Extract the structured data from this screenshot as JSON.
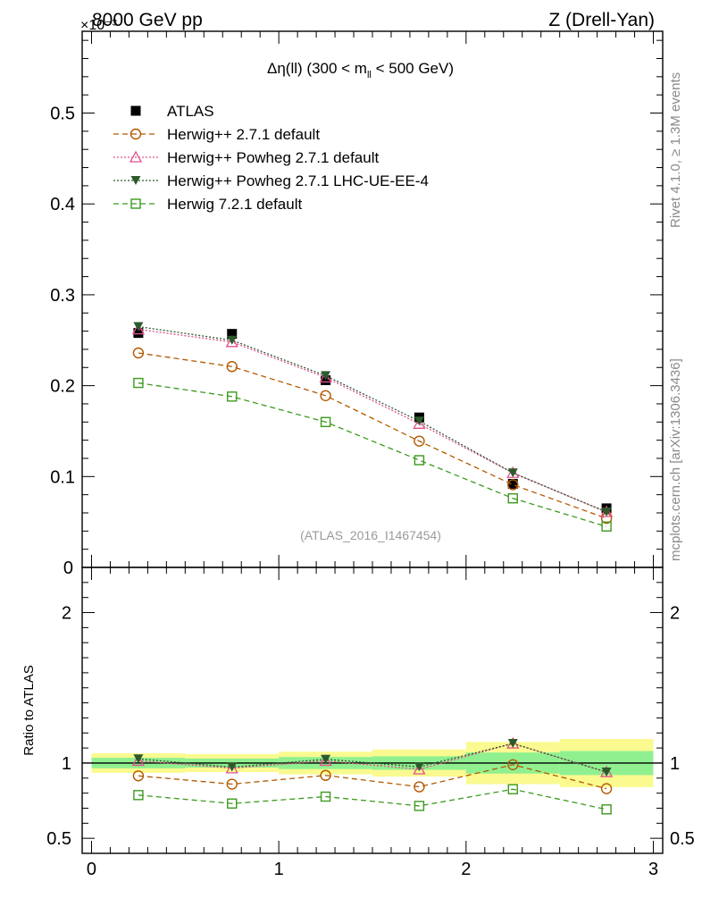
{
  "header": {
    "left": "8000 GeV pp",
    "exponent": "×10⁻³",
    "right": "Z (Drell-Yan)",
    "title_main": "Δη(ll) (300 < m",
    "title_sub": "ll",
    "title_end": " < 500 GeV)"
  },
  "side_text": {
    "rivet": "Rivet 4.1.0, ≥ 1.3M events",
    "mcplots": "mcplots.cern.ch [arXiv:1306.3436]"
  },
  "watermark": "(ATLAS_2016_I1467454)",
  "ratio_ylabel": "Ratio to ATLAS",
  "colors": {
    "data": "#000000",
    "herwig_pp": "#b35900",
    "powheg": "#e0508c",
    "powheg_ue": "#2d5a2d",
    "herwig7": "#3c9a1e",
    "band_inner": "#90f090",
    "band_outer": "#fafa90"
  },
  "chart_data": [
    {
      "type": "line",
      "panel": "main",
      "x_edges": [
        0,
        0.5,
        1,
        1.5,
        2,
        2.5,
        3
      ],
      "x": [
        0.25,
        0.75,
        1.25,
        1.75,
        2.25,
        2.75
      ],
      "xlim": [
        -0.05,
        3.05
      ],
      "ylim": [
        0,
        0.59
      ],
      "y_scale_note": "values ×10⁻³",
      "yticks": [
        0.1,
        0.2,
        0.3,
        0.4,
        0.5
      ],
      "ytick_labels": [
        "0.1",
        "0.2",
        "0.3",
        "0.4",
        "0.5"
      ],
      "y_zero_label": "0",
      "series": [
        {
          "name": "ATLAS",
          "key": "data",
          "marker": "filled-square",
          "style": "none",
          "values": [
            0.258,
            0.257,
            0.206,
            0.165,
            0.092,
            0.065
          ]
        },
        {
          "name": "Herwig++ 2.7.1 default",
          "key": "herwig_pp",
          "marker": "open-circle",
          "style": "dashed",
          "values": [
            0.236,
            0.221,
            0.189,
            0.139,
            0.091,
            0.054
          ]
        },
        {
          "name": "Herwig++ Powheg 2.7.1 default",
          "key": "powheg",
          "marker": "open-triangle",
          "style": "dotted",
          "values": [
            0.262,
            0.248,
            0.209,
            0.158,
            0.104,
            0.061
          ]
        },
        {
          "name": "Herwig++ Powheg 2.7.1 LHC-UE-EE-4",
          "key": "powheg_ue",
          "marker": "filled-triangle-down",
          "style": "dotted",
          "values": [
            0.265,
            0.25,
            0.211,
            0.161,
            0.104,
            0.061
          ]
        },
        {
          "name": "Herwig 7.2.1 default",
          "key": "herwig7",
          "marker": "open-square",
          "style": "dashed",
          "values": [
            0.203,
            0.188,
            0.16,
            0.118,
            0.076,
            0.045
          ]
        }
      ],
      "legend": "top-left"
    },
    {
      "type": "line",
      "panel": "ratio",
      "ylabel": "Ratio to ATLAS",
      "xlim": [
        -0.05,
        3.05
      ],
      "ylim": [
        0.4,
        2.3
      ],
      "yticks": [
        0.5,
        1,
        2
      ],
      "ytick_labels": [
        "0.5",
        "1",
        "2"
      ],
      "xticks": [
        0,
        1,
        2,
        3
      ],
      "xtick_labels": [
        "0",
        "1",
        "2",
        "3"
      ],
      "band_inner": [
        [
          0.965,
          1.035
        ],
        [
          0.97,
          1.03
        ],
        [
          0.96,
          1.04
        ],
        [
          0.955,
          1.045
        ],
        [
          0.93,
          1.07
        ],
        [
          0.92,
          1.08
        ]
      ],
      "band_outer": [
        [
          0.935,
          1.065
        ],
        [
          0.94,
          1.06
        ],
        [
          0.925,
          1.075
        ],
        [
          0.91,
          1.09
        ],
        [
          0.86,
          1.14
        ],
        [
          0.84,
          1.16
        ]
      ],
      "series": [
        {
          "name": "Herwig++ 2.7.1 default",
          "key": "herwig_pp",
          "values": [
            0.915,
            0.86,
            0.918,
            0.842,
            0.989,
            0.83
          ]
        },
        {
          "name": "Herwig++ Powheg 2.7.1 default",
          "key": "powheg",
          "values": [
            1.015,
            0.965,
            1.015,
            0.958,
            1.13,
            0.94
          ]
        },
        {
          "name": "Herwig++ Powheg 2.7.1 LHC-UE-EE-4",
          "key": "powheg_ue",
          "values": [
            1.028,
            0.973,
            1.025,
            0.975,
            1.13,
            0.94
          ]
        },
        {
          "name": "Herwig 7.2.1 default",
          "key": "herwig7",
          "values": [
            0.787,
            0.731,
            0.777,
            0.715,
            0.826,
            0.692
          ]
        }
      ]
    }
  ]
}
